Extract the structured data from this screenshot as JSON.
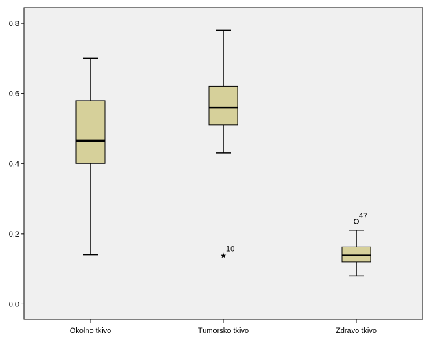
{
  "chart_data": {
    "type": "box",
    "categories": [
      "Okolno tkivo",
      "Tumorsko tkivo",
      "Zdravo tkivo"
    ],
    "boxes": [
      {
        "category": "Okolno tkivo",
        "whisker_low": 0.14,
        "q1": 0.4,
        "median": 0.465,
        "q3": 0.58,
        "whisker_high": 0.7
      },
      {
        "category": "Tumorsko tkivo",
        "whisker_low": 0.43,
        "q1": 0.51,
        "median": 0.56,
        "q3": 0.62,
        "whisker_high": 0.78
      },
      {
        "category": "Zdravo tkivo",
        "whisker_low": 0.08,
        "q1": 0.12,
        "median": 0.138,
        "q3": 0.162,
        "whisker_high": 0.21
      }
    ],
    "outliers": [
      {
        "category": "Tumorsko tkivo",
        "value": 0.14,
        "label": "10",
        "marker": "star"
      },
      {
        "category": "Zdravo tkivo",
        "value": 0.235,
        "label": "47",
        "marker": "circle"
      }
    ],
    "y_ticks": [
      {
        "value": 0.0,
        "label": "0,0"
      },
      {
        "value": 0.2,
        "label": "0,2"
      },
      {
        "value": 0.4,
        "label": "0,4"
      },
      {
        "value": 0.6,
        "label": "0,6"
      },
      {
        "value": 0.8,
        "label": "0,8"
      }
    ],
    "ylim": [
      -0.044,
      0.845
    ],
    "grid": false,
    "colors": {
      "box_fill": "#d6d09a",
      "plot_bg": "#f0f0f0",
      "line": "#000000"
    }
  }
}
